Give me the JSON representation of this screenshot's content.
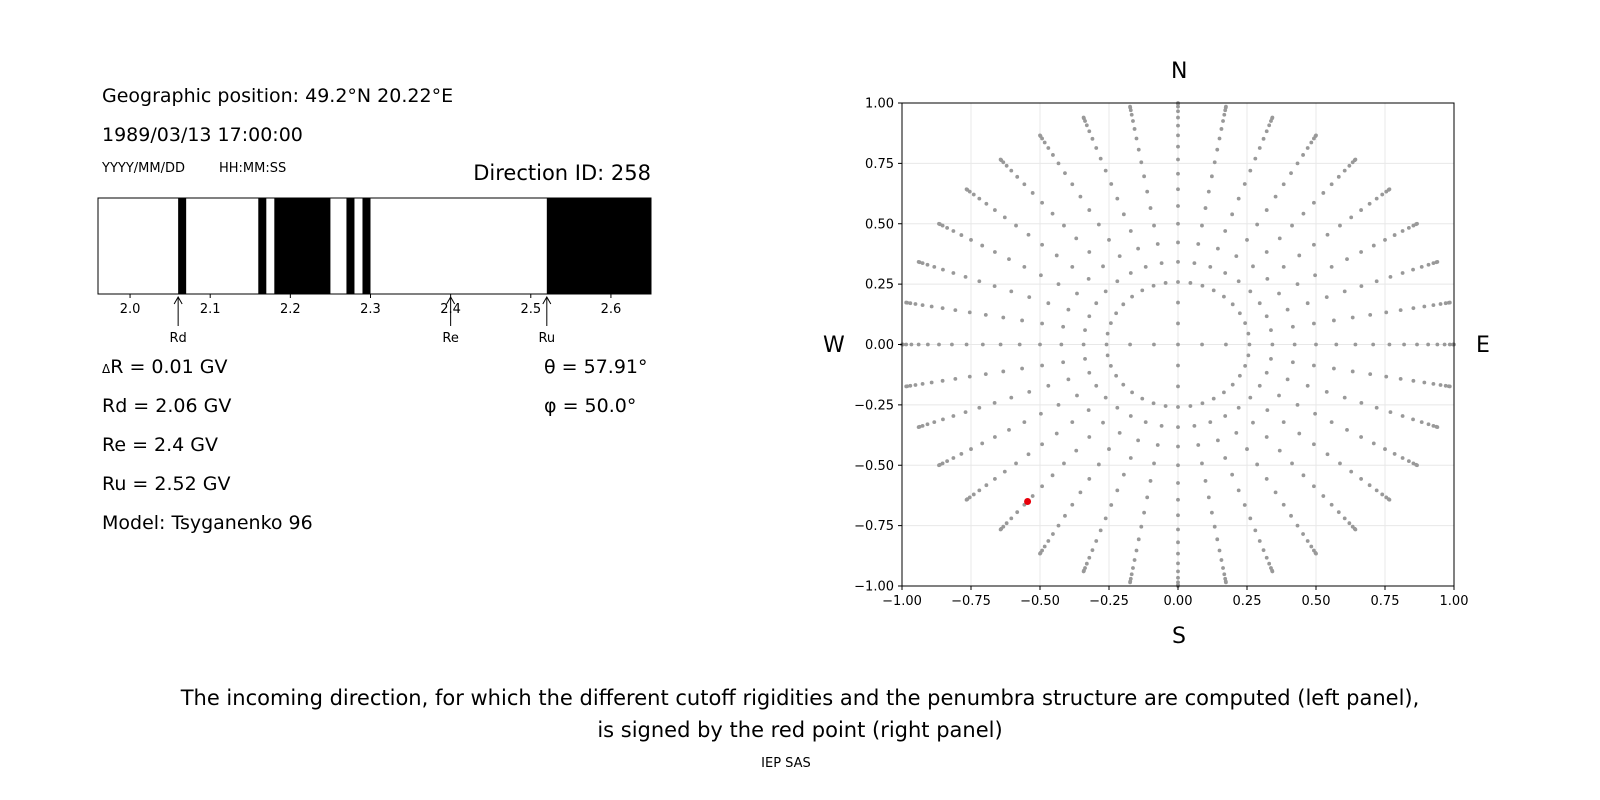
{
  "info": {
    "geo_position": "Geographic position: 49.2°N 20.22°E",
    "datetime": "1989/03/13 17:00:00",
    "date_format": "YYYY/MM/DD",
    "time_format": "HH:MM:SS",
    "direction_id": "Direction ID: 258",
    "delta_r": "R = 0.01 GV",
    "delta_symbol": "Δ",
    "rd": "Rd = 2.06 GV",
    "re": "Re = 2.4 GV",
    "ru": "Ru = 2.52 GV",
    "model": "Model: Tsyganenko 96",
    "theta": "θ = 57.91°",
    "phi": "φ = 50.0°"
  },
  "compass": {
    "north": "N",
    "south": "S",
    "west": "W",
    "east": "E"
  },
  "caption_line1": "The incoming direction, for which the different cutoff rigidities and the penumbra structure are computed (left panel),",
  "caption_line2": "is signed by the red point (right panel)",
  "footer": "IEP SAS",
  "chart_data": [
    {
      "type": "penumbra",
      "xlim": [
        1.96,
        2.65
      ],
      "xticks": [
        2.0,
        2.1,
        2.2,
        2.3,
        2.4,
        2.5,
        2.6
      ],
      "xtick_labels": [
        "2.0",
        "2.1",
        "2.2",
        "2.3",
        "2.4",
        "2.5",
        "2.6"
      ],
      "forbidden_bands": [
        [
          2.06,
          2.07
        ],
        [
          2.16,
          2.17
        ],
        [
          2.18,
          2.25
        ],
        [
          2.27,
          2.28
        ],
        [
          2.29,
          2.3
        ],
        [
          2.52,
          2.65
        ]
      ],
      "markers": [
        {
          "label": "Rd",
          "value": 2.06
        },
        {
          "label": "Re",
          "value": 2.4
        },
        {
          "label": "Ru",
          "value": 2.52
        }
      ],
      "colors": {
        "forbidden": "#000000",
        "allowed": "#ffffff"
      }
    },
    {
      "type": "scatter",
      "xlim": [
        -1.0,
        1.0
      ],
      "ylim": [
        -1.0,
        1.0
      ],
      "xticks": [
        -1.0,
        -0.75,
        -0.5,
        -0.25,
        0.0,
        0.25,
        0.5,
        0.75,
        1.0
      ],
      "yticks": [
        -1.0,
        -0.75,
        -0.5,
        -0.25,
        0.0,
        0.25,
        0.5,
        0.75,
        1.0
      ],
      "tick_labels": [
        "−1.00",
        "−0.75",
        "−0.50",
        "−0.25",
        "0.00",
        "0.25",
        "0.50",
        "0.75",
        "1.00"
      ],
      "grid": true,
      "grid_series": {
        "description": "directions on spokes every 10° azimuth; zenith angles 0–90° step 5°, projected as sin(zenith)",
        "azimuth_step_deg": 10,
        "zenith_step_deg": 5,
        "zenith_min_deg": 15,
        "zenith_max_deg": 90,
        "cardinal_azimuth_step_deg": 90,
        "cardinal_zenith_min_deg": 5,
        "color": "#999999"
      },
      "highlight": {
        "x": -0.545,
        "y": -0.65,
        "color": "#e8000b"
      }
    }
  ]
}
